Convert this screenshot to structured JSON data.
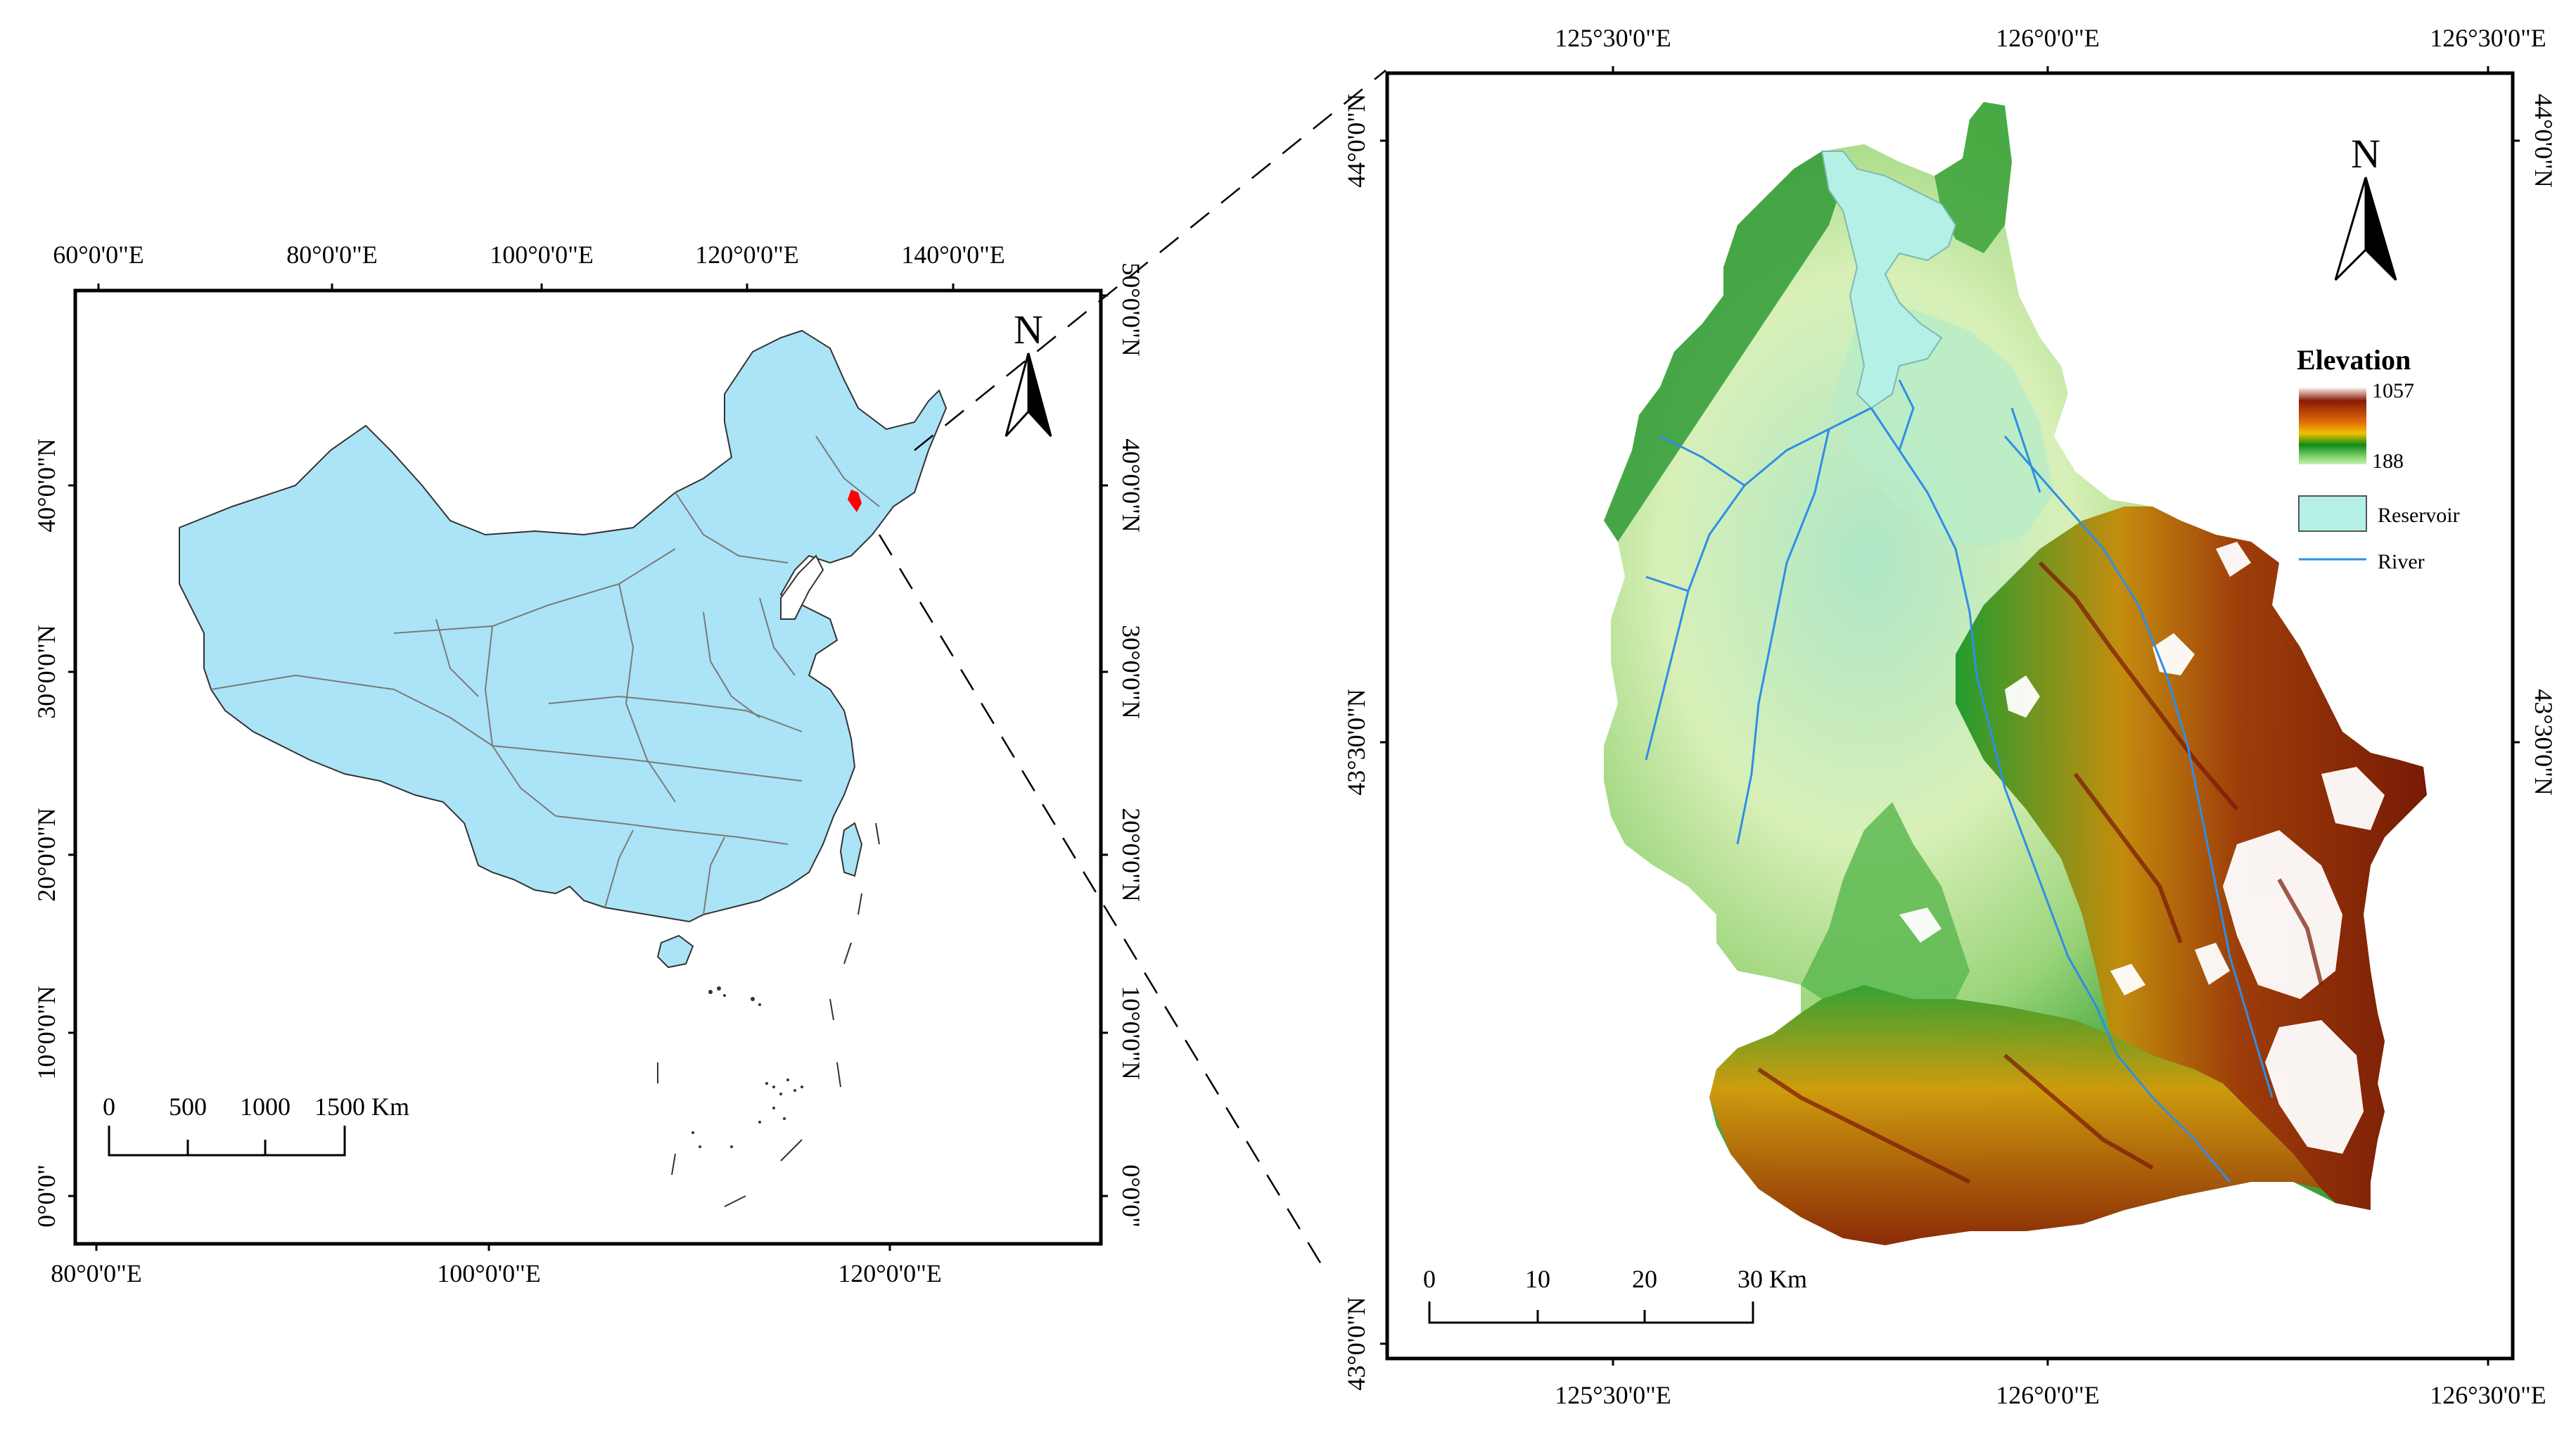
{
  "china_map": {
    "top_ticks": [
      "60°0'0\"E",
      "80°0'0\"E",
      "100°0'0\"E",
      "120°0'0\"E",
      "140°0'0\"E"
    ],
    "bottom_ticks": [
      "80°0'0\"E",
      "100°0'0\"E",
      "120°0'0\"E"
    ],
    "left_ticks": [
      "40°0'0\"N",
      "30°0'0\"N",
      "20°0'0\"N",
      "10°0'0\"N",
      "0°0'0\""
    ],
    "right_ticks": [
      "50°0'0\"N",
      "40°0'0\"N",
      "30°0'0\"N",
      "20°0'0\"N",
      "10°0'0\"N",
      "0°0'0\""
    ],
    "north_label": "N",
    "scale_labels": [
      "0",
      "500",
      "1000",
      "1500 Km"
    ],
    "colors": {
      "land": "#abe4f6",
      "boundary": "#7a7a7a",
      "study_area": "#ff0000"
    }
  },
  "watershed_map": {
    "top_ticks": [
      "125°30'0\"E",
      "126°0'0\"E",
      "126°30'0\"E"
    ],
    "bottom_ticks": [
      "125°30'0\"E",
      "126°0'0\"E",
      "126°30'0\"E"
    ],
    "left_ticks": [
      "44°0'0\"N",
      "43°30'0\"N",
      "43°0'0\"N"
    ],
    "right_ticks": [
      "44°0'0\"N",
      "43°30'0\"N"
    ],
    "north_label": "N",
    "scale_labels": [
      "0",
      "10",
      "20",
      "30 Km"
    ],
    "legend": {
      "title": "Elevation",
      "max": "1057",
      "min": "188",
      "reservoir_label": "Reservoir",
      "river_label": "River"
    },
    "colors": {
      "reservoir": "#b4f0e6",
      "river": "#2f8ee6",
      "ramp": [
        "#ffffff",
        "#8b1a05",
        "#e06a0a",
        "#f2c100",
        "#0f8a1a",
        "#7fd36a",
        "#c8f0b4",
        "#f3f7c0"
      ]
    }
  }
}
